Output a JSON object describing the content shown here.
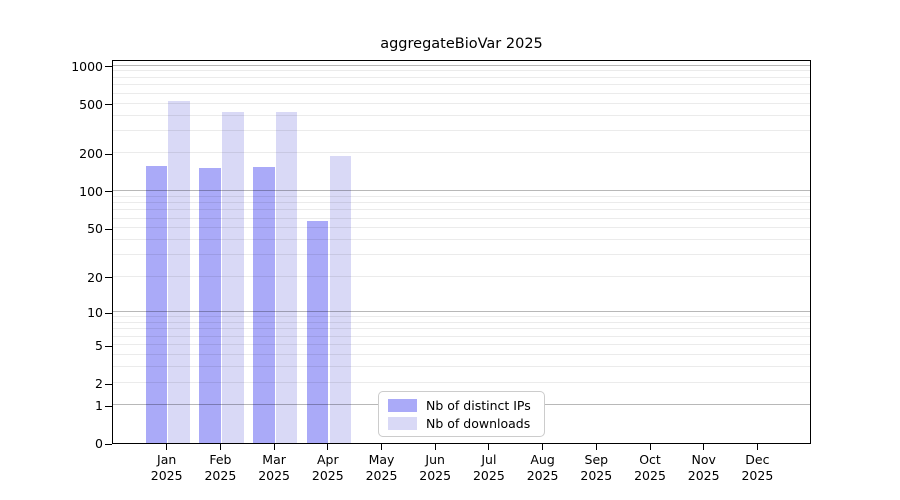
{
  "chart_data": {
    "type": "bar",
    "title": "aggregateBioVar 2025",
    "categories": [
      "Jan",
      "Feb",
      "Mar",
      "Apr",
      "May",
      "Jun",
      "Jul",
      "Aug",
      "Sep",
      "Oct",
      "Nov",
      "Dec"
    ],
    "x_year_label": "2025",
    "series": [
      {
        "name": "Nb of distinct IPs",
        "color": "#aaaaf8",
        "values": [
          160,
          152,
          155,
          57,
          0,
          0,
          0,
          0,
          0,
          0,
          0,
          0
        ]
      },
      {
        "name": "Nb of downloads",
        "color": "#d9d9f6",
        "values": [
          525,
          425,
          425,
          190,
          0,
          0,
          0,
          0,
          0,
          0,
          0,
          0
        ]
      }
    ],
    "xlabel": "",
    "ylabel": "",
    "y_ticks": [
      0,
      1,
      2,
      5,
      10,
      20,
      50,
      100,
      200,
      500,
      1000
    ],
    "y_scale": "log10(1+y)",
    "ylim": [
      0,
      1130
    ],
    "grid": "horizontal, minor log lines light, powers of 10 darker, drawn over bars",
    "legend_position": "inside lower center-left",
    "legend_entries": [
      "Nb of distinct IPs",
      "Nb of downloads"
    ]
  }
}
